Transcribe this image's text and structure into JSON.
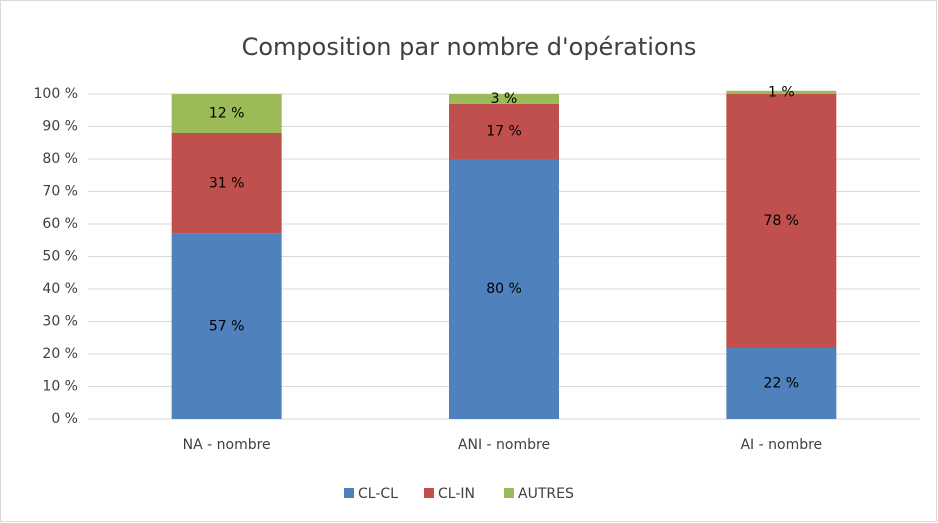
{
  "chart_data": {
    "type": "stacked_bar",
    "title": "Composition par nombre d'opérations",
    "categories": [
      "NA - nombre",
      "ANI - nombre",
      "AI - nombre"
    ],
    "series": [
      {
        "name": "CL-CL",
        "color": "#4f81bd",
        "values": [
          57,
          80,
          22
        ],
        "value_labels": [
          "57 %",
          "80 %",
          "22 %"
        ]
      },
      {
        "name": "CL-IN",
        "color": "#c0504d",
        "values": [
          31,
          17,
          78
        ],
        "value_labels": [
          "31 %",
          "17 %",
          "78 %"
        ]
      },
      {
        "name": "AUTRES",
        "color": "#9bbb59",
        "values": [
          12,
          3,
          1
        ],
        "value_labels": [
          "12 %",
          "3 %",
          "1 %"
        ]
      }
    ],
    "ylim": [
      0,
      100
    ],
    "yticks": [
      {
        "value": 0,
        "label": "0 %"
      },
      {
        "value": 10,
        "label": "10 %"
      },
      {
        "value": 20,
        "label": "20 %"
      },
      {
        "value": 30,
        "label": "30 %"
      },
      {
        "value": 40,
        "label": "40 %"
      },
      {
        "value": 50,
        "label": "50 %"
      },
      {
        "value": 60,
        "label": "60 %"
      },
      {
        "value": 70,
        "label": "70 %"
      },
      {
        "value": 80,
        "label": "80 %"
      },
      {
        "value": 90,
        "label": "90 %"
      },
      {
        "value": 100,
        "label": "100 %"
      }
    ],
    "grid": true,
    "legend": "bottom"
  }
}
